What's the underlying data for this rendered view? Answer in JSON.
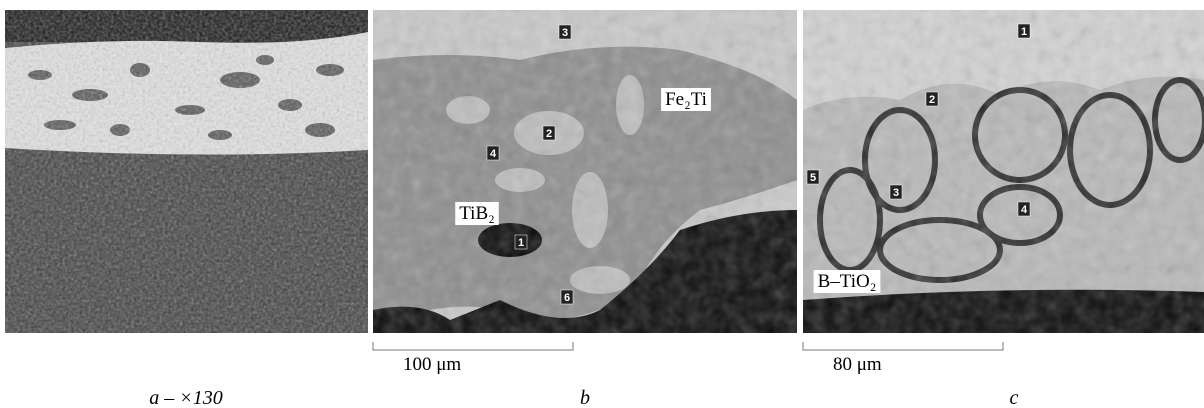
{
  "panels": [
    {
      "caption": "a – ×130"
    },
    {
      "caption": "b",
      "scale_bar": "100 μm",
      "labels": [
        "Fe₂Ti",
        "TiB₂"
      ],
      "markers": [
        "3",
        "2",
        "4",
        "1",
        "6"
      ]
    },
    {
      "caption": "c",
      "scale_bar": "80 μm",
      "labels": [
        "B–TiO₂"
      ],
      "markers": [
        "1",
        "2",
        "3",
        "4",
        "5"
      ]
    }
  ]
}
